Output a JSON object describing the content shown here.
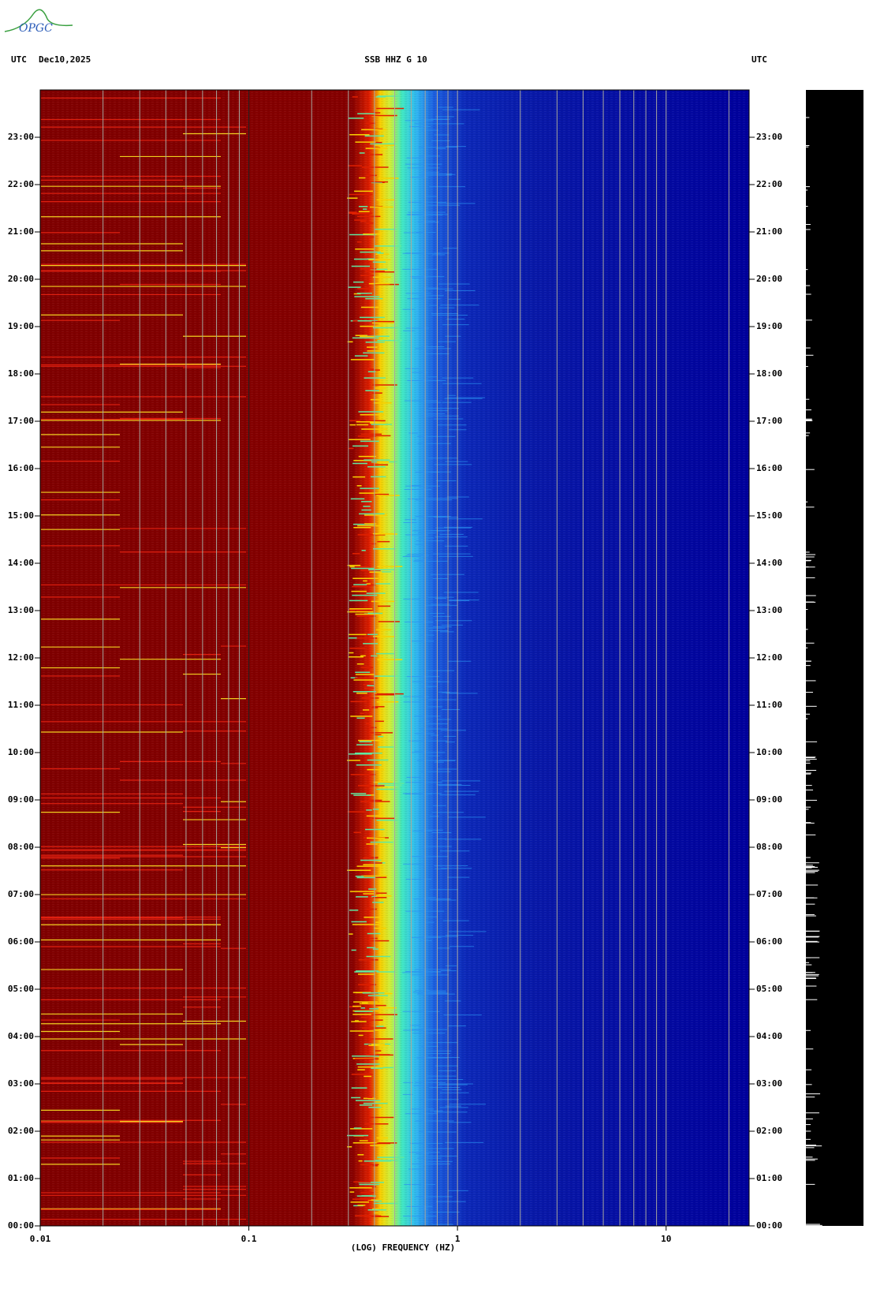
{
  "header": {
    "left": "UTC",
    "date": "Dec10,2025",
    "station": "SSB HHZ G 10",
    "right": "UTC"
  },
  "logo": "OPGC",
  "chart_data": {
    "type": "spectrogram",
    "xlabel": "(LOG) FREQUENCY (HZ)",
    "xscale": "log",
    "xlim": [
      0.01,
      25
    ],
    "xticks": [
      0.01,
      0.1,
      1,
      10
    ],
    "xgrid": [
      0.02,
      0.03,
      0.04,
      0.05,
      0.06,
      0.07,
      0.08,
      0.09,
      0.2,
      0.3,
      0.4,
      0.5,
      0.6,
      0.7,
      0.8,
      0.9,
      2,
      3,
      4,
      5,
      6,
      7,
      8,
      9,
      20
    ],
    "grid": true,
    "ylim": [
      0,
      24
    ],
    "yticks": [
      {
        "value": 0,
        "label": "00:00"
      },
      {
        "value": 1,
        "label": "01:00"
      },
      {
        "value": 2,
        "label": "02:00"
      },
      {
        "value": 3,
        "label": "03:00"
      },
      {
        "value": 4,
        "label": "04:00"
      },
      {
        "value": 5,
        "label": "05:00"
      },
      {
        "value": 6,
        "label": "06:00"
      },
      {
        "value": 7,
        "label": "07:00"
      },
      {
        "value": 8,
        "label": "08:00"
      },
      {
        "value": 9,
        "label": "09:00"
      },
      {
        "value": 10,
        "label": "10:00"
      },
      {
        "value": 11,
        "label": "11:00"
      },
      {
        "value": 12,
        "label": "12:00"
      },
      {
        "value": 13,
        "label": "13:00"
      },
      {
        "value": 14,
        "label": "14:00"
      },
      {
        "value": 15,
        "label": "15:00"
      },
      {
        "value": 16,
        "label": "16:00"
      },
      {
        "value": 17,
        "label": "17:00"
      },
      {
        "value": 18,
        "label": "18:00"
      },
      {
        "value": 19,
        "label": "19:00"
      },
      {
        "value": 20,
        "label": "20:00"
      },
      {
        "value": 21,
        "label": "21:00"
      },
      {
        "value": 22,
        "label": "22:00"
      },
      {
        "value": 23,
        "label": "23:00"
      }
    ]
  }
}
